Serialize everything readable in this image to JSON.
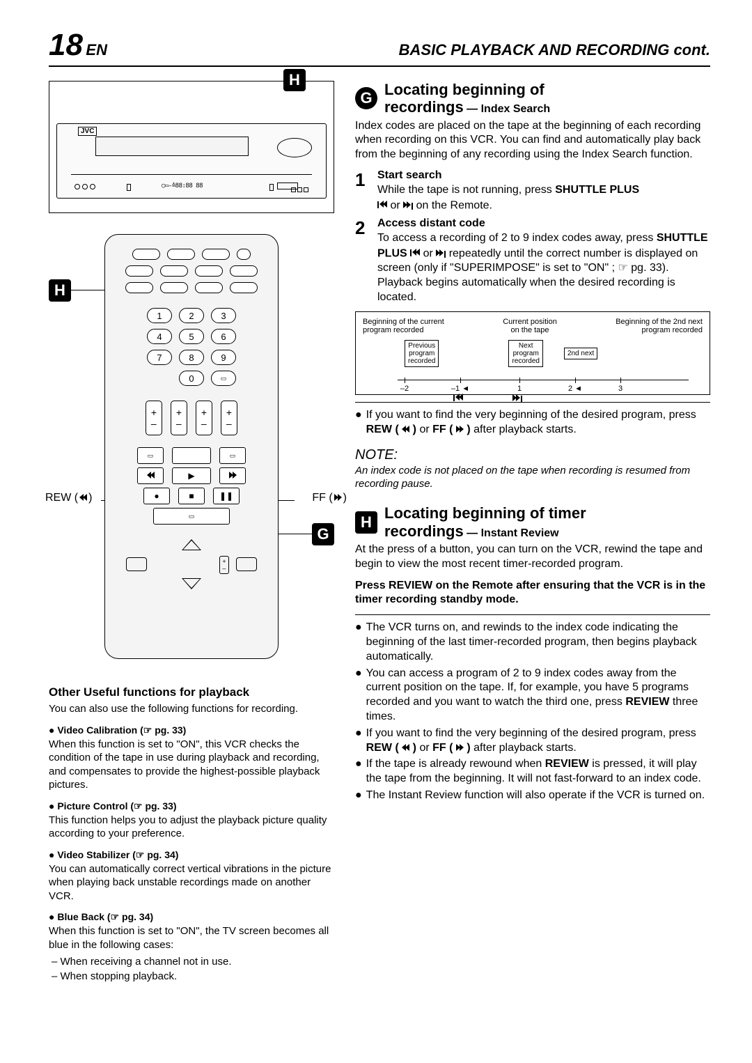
{
  "header": {
    "page_number": "18",
    "lang": "EN",
    "title": "BASIC PLAYBACK AND RECORDING cont."
  },
  "left": {
    "vcr_label": "H",
    "vcr_brand": "JVC",
    "vcr_lcd": "◯▭-≛88:88 88",
    "remote_label_h": "H",
    "remote_label_g": "G",
    "rew_label": "REW (",
    "rew_close": ")",
    "ff_label": "FF (",
    "ff_close": ")",
    "nums": [
      "1",
      "2",
      "3",
      "4",
      "5",
      "6",
      "7",
      "8",
      "9",
      "0"
    ],
    "useful_title": "Other Useful functions for playback",
    "useful_intro": "You can also use the following functions for recording.",
    "f1_title": "● Video Calibration (☞ pg. 33)",
    "f1_text": "When this function is set to \"ON\", this VCR checks the condition of the tape in use during playback and recording, and compensates to provide the highest-possible playback pictures.",
    "f2_title": "● Picture Control (☞ pg. 33)",
    "f2_text": "This function helps you to adjust the playback picture quality according to your preference.",
    "f3_title": "● Video Stabilizer (☞ pg. 34)",
    "f3_text": "You can automatically correct vertical vibrations in the picture when playing back unstable recordings made on another VCR.",
    "f4_title": "● Blue Back (☞ pg. 34)",
    "f4_text": "When this function is set to \"ON\", the TV screen becomes all blue in the following cases:",
    "f4_d1": "When receiving a channel not in use.",
    "f4_d2": "When stopping playback."
  },
  "right": {
    "g_letter": "G",
    "g_title_l1": "Locating beginning of",
    "g_title_l2": "recordings",
    "g_sub": " — Index Search",
    "g_intro": "Index codes are placed on the tape at the beginning of each recording when recording on this VCR. You can find and automatically play back from the beginning of any recording using the Index Search function.",
    "s1_num": "1",
    "s1_title": "Start search",
    "s1_text_a": "While the tape is not running, press ",
    "s1_text_b": "SHUTTLE PLUS",
    "s1_text_c": " or ",
    "s1_text_d": " on the Remote.",
    "s2_num": "2",
    "s2_title": "Access distant code",
    "s2_text_a": "To access a recording of 2 to 9 index codes away, press ",
    "s2_text_b": "SHUTTLE PLUS",
    "s2_text_c": " or ",
    "s2_text_d": " repeatedly until the correct number is displayed on screen (only if \"SUPERIMPOSE\" is set to \"ON\" ; ☞ pg. 33). Playback begins automatically when the desired recording is located.",
    "idx": {
      "tl1": "Beginning of the current",
      "tl2": "program recorded",
      "tc1": "Current position",
      "tc2": "on the tape",
      "tr1": "Beginning of the 2nd next",
      "tr2": "program recorded",
      "prev": "Previous\nprogram\nrecorded",
      "next": "Next\nprogram\nrecorded",
      "next2": "2nd next",
      "n_m2": "–2",
      "n_m1": "–1",
      "n_1": "1",
      "n_2": "2",
      "n_3": "3"
    },
    "g_bullet_a": "If you want to find the very beginning of the desired program, press ",
    "g_bullet_rew": "REW (",
    "g_bullet_or": " or ",
    "g_bullet_ff": "FF (",
    "g_bullet_end": " after playback starts.",
    "note_title": "NOTE:",
    "note_text": "An index code is not placed on the tape when recording is resumed from recording pause.",
    "h_letter": "H",
    "h_title_l1": "Locating beginning of timer",
    "h_title_l2": "recordings",
    "h_sub": " — Instant Review",
    "h_intro": "At the press of a button, you can turn on the VCR, rewind the tape and begin to view the most recent timer-recorded program.",
    "h_bold": "Press REVIEW on the Remote after ensuring that the VCR is in the timer recording standby mode.",
    "h_b1": "The VCR turns on, and rewinds to the index code indicating the beginning of the last timer-recorded program, then begins playback automatically.",
    "h_b2_a": "You can access a program of 2 to 9 index codes away from the current position on the tape. If, for example, you have 5 programs recorded and you want to watch the third one, press ",
    "h_b2_b": "REVIEW",
    "h_b2_c": " three times.",
    "h_b3_a": "If you want to find the very beginning of the desired program, press ",
    "h_b3_b": "REW (",
    "h_b3_c": " or ",
    "h_b3_d": "FF (",
    "h_b3_e": " after playback starts.",
    "h_b4_a": "If the tape is already rewound when ",
    "h_b4_b": "REVIEW",
    "h_b4_c": " is pressed, it will play the tape from the beginning. It will not fast-forward to an index code.",
    "h_b5": "The Instant Review function will also operate if the VCR is turned on."
  }
}
